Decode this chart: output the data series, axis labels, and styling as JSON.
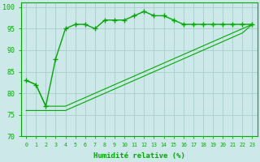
{
  "xlabel": "Humidité relative (%)",
  "x_ticks": [
    0,
    1,
    2,
    3,
    4,
    5,
    6,
    7,
    8,
    9,
    10,
    11,
    12,
    13,
    14,
    15,
    16,
    17,
    18,
    19,
    20,
    21,
    22,
    23
  ],
  "ylim": [
    70,
    101
  ],
  "yticks": [
    70,
    75,
    80,
    85,
    90,
    95,
    100
  ],
  "bg_color": "#cce8e8",
  "grid_color": "#aacccc",
  "line_color": "#00aa00",
  "series1": [
    83,
    82,
    77,
    88,
    95,
    96,
    96,
    95,
    97,
    97,
    97,
    98,
    99,
    98,
    98,
    97,
    96,
    96,
    96,
    96,
    96,
    96,
    96,
    96
  ],
  "series2": [
    83,
    82,
    77,
    77,
    77,
    78,
    79,
    80,
    81,
    82,
    83,
    84,
    85,
    86,
    87,
    88,
    89,
    90,
    91,
    92,
    93,
    94,
    95,
    96
  ],
  "series3": [
    76,
    76,
    76,
    76,
    76,
    77,
    78,
    79,
    80,
    81,
    82,
    83,
    84,
    85,
    86,
    87,
    88,
    89,
    90,
    91,
    92,
    93,
    94,
    96
  ]
}
